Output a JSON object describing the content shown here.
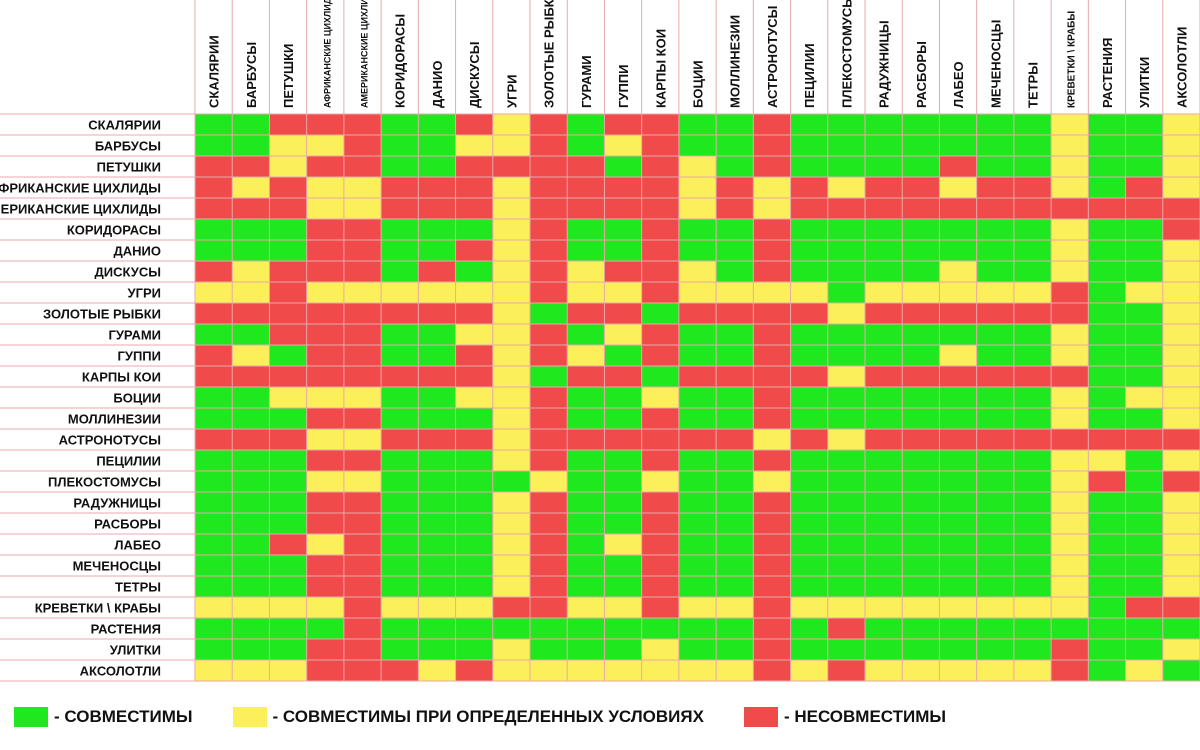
{
  "chart_data": {
    "type": "heatmap",
    "row_labels": [
      "СКАЛЯРИИ",
      "БАРБУСЫ",
      "ПЕТУШКИ",
      "АФРИКАНСКИЕ ЦИХЛИДЫ",
      "АМЕРИКАНСКИЕ ЦИХЛИДЫ",
      "КОРИДОРАСЫ",
      "ДАНИО",
      "ДИСКУСЫ",
      "УГРИ",
      "ЗОЛОТЫЕ РЫБКИ",
      "ГУРАМИ",
      "ГУППИ",
      "КАРПЫ КОИ",
      "БОЦИИ",
      "МОЛЛИНЕЗИИ",
      "АСТРОНОТУСЫ",
      "ПЕЦИЛИИ",
      "ПЛЕКОСТОМУСЫ",
      "РАДУЖНИЦЫ",
      "РАСБОРЫ",
      "ЛАБЕО",
      "МЕЧЕНОСЦЫ",
      "ТЕТРЫ",
      "КРЕВЕТКИ \\ КРАБЫ",
      "РАСТЕНИЯ",
      "УЛИТКИ",
      "АКСОЛОТЛИ"
    ],
    "column_labels": [
      "СКАЛЯРИИ",
      "БАРБУСЫ",
      "ПЕТУШКИ",
      "АФРИКАНСКИЕ ЦИХЛИДЫ",
      "АМЕРИКАНСКИЕ ЦИХЛИДЫ",
      "КОРИДОРАСЫ",
      "ДАНИО",
      "ДИСКУСЫ",
      "УГРИ",
      "ЗОЛОТЫЕ РЫБКИ",
      "ГУРАМИ",
      "ГУППИ",
      "КАРПЫ КОИ",
      "БОЦИИ",
      "МОЛЛИНЕЗИИ",
      "АСТРОНОТУСЫ",
      "ПЕЦИЛИИ",
      "ПЛЕКОСТОМУСЫ",
      "РАДУЖНИЦЫ",
      "РАСБОРЫ",
      "ЛАБЕО",
      "МЕЧЕНОСЦЫ",
      "ТЕТРЫ",
      "КРЕВЕТКИ \\ КРАБЫ",
      "РАСТЕНИЯ",
      "УЛИТКИ",
      "АКСОЛОТЛИ"
    ],
    "value_codes": {
      "G": "compatible",
      "Y": "conditionally compatible",
      "R": "incompatible"
    },
    "values": [
      "GGRRRGGRYRGRRGGRGGGGGGGYGGY",
      "GGYYRGGYYRGYRGGRGGGGGGGYGGY",
      "RRYRRGGRRRRGRYGRGGGGRGGYGGY",
      "RYRYYRRRYRRRRYRYRYRRYRRYGRY",
      "RRRYYRRRYRRRRYRYRRRRRRRRRRR",
      "GGGRRGGGYRGGRGGRGGGGGGGYGGR",
      "GGGRRGGRYRGGRGGRGGGGGGGYGGY",
      "RYRRRGRGYRYRRYGRGGGGYGGYGGY",
      "YYRYYYYYYRYYRYYYYGYYYYYRGYY",
      "RRRRRRRRYGRRGRRRRYRRRRRRGGY",
      "GGRRRGGYYRGYRGGRGGGGGGGYGGY",
      "RYGRRGGRYRYGRGGRGGGGYGGYGGY",
      "RRRRRRRRYGRRGRRRRYRRRRRRGGY",
      "GGYYYGGYYRGGYGGRGGGGGGGYGYY",
      "GGGRRGGGYRGGRGGRGGGGGGGYGGY",
      "RRRYYRRRYRRRRRRYRYRRRRRRRRR",
      "GGGRRGGGYRGGRGGRGGGGGGGYYGY",
      "GGGYYGGGGYGGYGGYGGGGGGGYRGR",
      "GGGRRGGGYRGGRGGRGGGGGGGYGGY",
      "GGGRRGGGYRGGRGGRGGGGGGGYGGY",
      "GGRYRGGGYRGYRGGRGGGGGGGYGGY",
      "GGGRRGGGYRGGRGGRGGGGGGGYGGY",
      "GGGRRGGGYRGGRGGRGGGGGGGYGGY",
      "YYYYRYYYRRYYRYYRYYYYYYYYGRR",
      "GGGGRGGGGGGGGGGRGRGGGGGGGGG",
      "GGGRRGGGYGGGYGGRGGGGGGGRGGY",
      "YYYRRRYRYYYYYYYRYRYYYYYRGYG"
    ],
    "colors": {
      "G": "#1fe81f",
      "Y": "#fbf05a",
      "R": "#f14a4a"
    },
    "legend": [
      {
        "code": "G",
        "label": "- СОВМЕСТИМЫ"
      },
      {
        "code": "Y",
        "label": "- СОВМЕСТИМЫ ПРИ ОПРЕДЕЛЕННЫХ УСЛОВИЯХ"
      },
      {
        "code": "R",
        "label": "- НЕСОВМЕСТИМЫ"
      }
    ]
  }
}
